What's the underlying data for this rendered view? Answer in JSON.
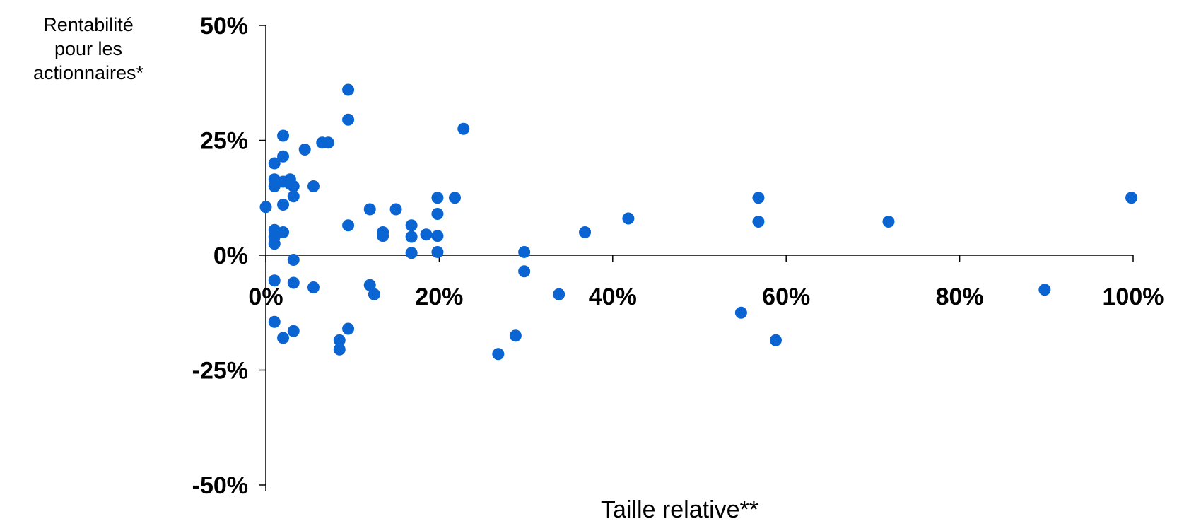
{
  "chart_data": {
    "type": "scatter",
    "ylabel_lines": [
      "Rentabilité",
      "pour les",
      "actionnaires*"
    ],
    "xlabel": "Taille relative**",
    "xlim": [
      0,
      100
    ],
    "ylim": [
      -50,
      50
    ],
    "x_ticks": [
      0,
      20,
      40,
      60,
      80,
      100
    ],
    "x_tick_labels": [
      "0%",
      "20%",
      "40%",
      "60%",
      "80%",
      "100%"
    ],
    "y_ticks": [
      50,
      25,
      0,
      -25,
      -50
    ],
    "y_tick_labels": [
      "50%",
      "25%",
      "0%",
      "-25%",
      "-50%"
    ],
    "grid": false,
    "marker_color": "#0a64d2",
    "points": [
      {
        "x": 0,
        "y": 10.5
      },
      {
        "x": 1,
        "y": 20
      },
      {
        "x": 1,
        "y": 16.5
      },
      {
        "x": 1,
        "y": 15
      },
      {
        "x": 1,
        "y": 5.5
      },
      {
        "x": 1,
        "y": 4
      },
      {
        "x": 1,
        "y": 2.5
      },
      {
        "x": 1,
        "y": -5.5
      },
      {
        "x": 1,
        "y": -14.5
      },
      {
        "x": 2,
        "y": 26
      },
      {
        "x": 2,
        "y": 21.5
      },
      {
        "x": 2,
        "y": 16
      },
      {
        "x": 2,
        "y": 11
      },
      {
        "x": 2,
        "y": 5
      },
      {
        "x": 2,
        "y": -18
      },
      {
        "x": 2.8,
        "y": 16.5
      },
      {
        "x": 2.8,
        "y": 15.5
      },
      {
        "x": 3.2,
        "y": 15
      },
      {
        "x": 3.2,
        "y": 12.8
      },
      {
        "x": 3.2,
        "y": -1
      },
      {
        "x": 3.2,
        "y": -6
      },
      {
        "x": 3.2,
        "y": -16.5
      },
      {
        "x": 4.5,
        "y": 23
      },
      {
        "x": 5.5,
        "y": 15
      },
      {
        "x": 5.5,
        "y": -7
      },
      {
        "x": 6.5,
        "y": 24.5
      },
      {
        "x": 7.2,
        "y": 24.5
      },
      {
        "x": 8.5,
        "y": -18.5
      },
      {
        "x": 8.5,
        "y": -20.5
      },
      {
        "x": 9.5,
        "y": 36
      },
      {
        "x": 9.5,
        "y": 29.5
      },
      {
        "x": 9.5,
        "y": 6.5
      },
      {
        "x": 9.5,
        "y": -16
      },
      {
        "x": 12,
        "y": 10
      },
      {
        "x": 12,
        "y": -6.5
      },
      {
        "x": 12.5,
        "y": -8.5
      },
      {
        "x": 13.5,
        "y": 5
      },
      {
        "x": 13.5,
        "y": 4.2
      },
      {
        "x": 15,
        "y": 10
      },
      {
        "x": 16.8,
        "y": 6.5
      },
      {
        "x": 16.8,
        "y": 4
      },
      {
        "x": 16.8,
        "y": 0.5
      },
      {
        "x": 18.5,
        "y": 4.5
      },
      {
        "x": 19.8,
        "y": 12.5
      },
      {
        "x": 19.8,
        "y": 9
      },
      {
        "x": 19.8,
        "y": 4.2
      },
      {
        "x": 19.8,
        "y": 0.7
      },
      {
        "x": 21.8,
        "y": 12.5
      },
      {
        "x": 22.8,
        "y": 27.5
      },
      {
        "x": 26.8,
        "y": -21.5
      },
      {
        "x": 28.8,
        "y": -17.5
      },
      {
        "x": 29.8,
        "y": 0.7
      },
      {
        "x": 29.8,
        "y": -3.5
      },
      {
        "x": 33.8,
        "y": -8.5
      },
      {
        "x": 36.8,
        "y": 5
      },
      {
        "x": 41.8,
        "y": 8
      },
      {
        "x": 54.8,
        "y": -12.5
      },
      {
        "x": 56.8,
        "y": 12.5
      },
      {
        "x": 56.8,
        "y": 7.3
      },
      {
        "x": 58.8,
        "y": -18.5
      },
      {
        "x": 71.8,
        "y": 7.3
      },
      {
        "x": 89.8,
        "y": -7.5
      },
      {
        "x": 99.8,
        "y": 12.5
      }
    ]
  }
}
